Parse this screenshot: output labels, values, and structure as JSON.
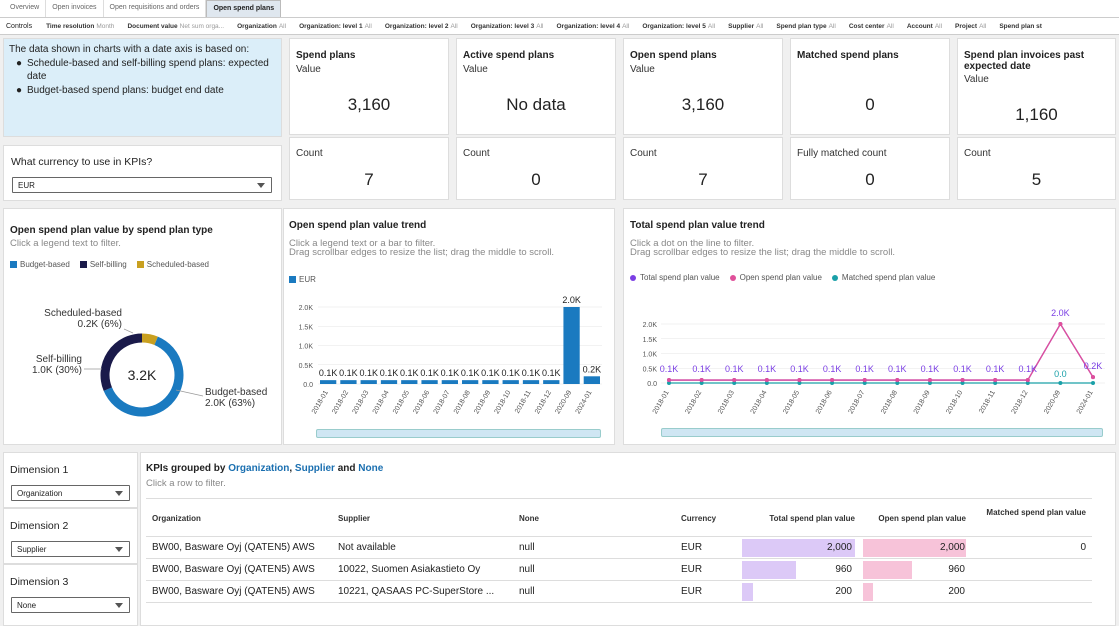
{
  "tabs": [
    "Overview",
    "Open invoices",
    "Open requisitions and orders",
    "Open spend plans"
  ],
  "controls": {
    "label": "Controls",
    "items": [
      {
        "name": "Time resolution",
        "value": "Month"
      },
      {
        "name": "Document value",
        "value": "Net sum orga..."
      },
      {
        "name": "Organization",
        "value": "All"
      },
      {
        "name": "Organization: level 1",
        "value": "All"
      },
      {
        "name": "Organization: level 2",
        "value": "All"
      },
      {
        "name": "Organization: level 3",
        "value": "All"
      },
      {
        "name": "Organization: level 4",
        "value": "All"
      },
      {
        "name": "Organization: level 5",
        "value": "All"
      },
      {
        "name": "Supplier",
        "value": "All"
      },
      {
        "name": "Spend plan type",
        "value": "All"
      },
      {
        "name": "Cost center",
        "value": "All"
      },
      {
        "name": "Account",
        "value": "All"
      },
      {
        "name": "Project",
        "value": "All"
      },
      {
        "name": "Spend plan st",
        "value": ""
      }
    ]
  },
  "info": {
    "text": "The data shown in charts with a date axis is based on:",
    "bullets": [
      "Schedule-based and self-billing spend plans: expected date",
      "Budget-based spend plans: budget end date"
    ]
  },
  "currency": {
    "label": "What currency to use in KPIs?",
    "value": "EUR"
  },
  "kpis": [
    {
      "title": "Spend plans",
      "sub": "Value",
      "value": "3,160",
      "count_label": "Count",
      "count": "7"
    },
    {
      "title": "Active spend plans",
      "sub": "Value",
      "value": "No data",
      "count_label": "Count",
      "count": "0"
    },
    {
      "title": "Open spend plans",
      "sub": "Value",
      "value": "3,160",
      "count_label": "Count",
      "count": "7"
    },
    {
      "title": "Matched spend plans",
      "sub": "",
      "value": "0",
      "count_label": "Fully matched count",
      "count": "0"
    },
    {
      "title": "Spend plan invoices past expected date",
      "sub": "Value",
      "value": "1,160",
      "count_label": "Count",
      "count": "5"
    }
  ],
  "donut": {
    "title": "Open spend plan value by spend plan type",
    "hint": "Click a legend text to filter.",
    "center": "3.2K",
    "legend": [
      "Budget-based",
      "Self-billing",
      "Scheduled-based"
    ],
    "labels": [
      {
        "l1": "Scheduled-based",
        "l2": "0.2K (6%)"
      },
      {
        "l1": "Self-billing",
        "l2": "1.0K (30%)"
      },
      {
        "l1": "Budget-based",
        "l2": "2.0K (63%)"
      }
    ]
  },
  "trend": {
    "title": "Open spend plan value trend",
    "hint1": "Click a legend text or a bar to filter.",
    "hint2": "Drag scrollbar edges to resize the list; drag the middle to scroll.",
    "legend": "EUR",
    "yticks": [
      "2.0K",
      "1.5K",
      "1.0K",
      "0.5K",
      "0.0"
    ]
  },
  "total": {
    "title": "Total spend plan value trend",
    "hint1": "Click a dot on the line to filter.",
    "hint2": "Drag scrollbar edges to resize the list; drag the middle to scroll.",
    "legend": [
      "Total spend plan value",
      "Open spend plan value",
      "Matched spend plan value"
    ],
    "yticks": [
      "2.0K",
      "1.5K",
      "1.0K",
      "0.5K",
      "0.0"
    ]
  },
  "dims": [
    {
      "label": "Dimension 1",
      "value": "Organization"
    },
    {
      "label": "Dimension 2",
      "value": "Supplier"
    },
    {
      "label": "Dimension 3",
      "value": "None"
    }
  ],
  "table": {
    "title_pre": "KPIs grouped by ",
    "t1": "Organization",
    "t_comma": ", ",
    "t2": "Supplier",
    "t_and": " and ",
    "t3": "None",
    "hint": "Click a row to filter.",
    "headers": [
      "Organization",
      "Supplier",
      "None",
      "Currency",
      "Total spend plan value",
      "Open spend plan value",
      "Matched spend plan value"
    ],
    "rows": [
      {
        "org": "BW00, Basware Oyj (QATEN5) AWS",
        "sup": "Not available",
        "none": "null",
        "cur": "EUR",
        "total": "2,000",
        "open": "2,000",
        "matched": "0",
        "total_n": 2000,
        "open_n": 2000
      },
      {
        "org": "BW00, Basware Oyj (QATEN5) AWS",
        "sup": "10022, Suomen Asiakastieto Oy",
        "none": "null",
        "cur": "EUR",
        "total": "960",
        "open": "960",
        "matched": "",
        "total_n": 960,
        "open_n": 960
      },
      {
        "org": "BW00, Basware Oyj (QATEN5) AWS",
        "sup": "10221, QASAAS PC-SuperStore ...",
        "none": "null",
        "cur": "EUR",
        "total": "200",
        "open": "200",
        "matched": "",
        "total_n": 200,
        "open_n": 200
      }
    ]
  },
  "chart_data": [
    {
      "type": "pie",
      "title": "Open spend plan value by spend plan type",
      "categories": [
        "Budget-based",
        "Self-billing",
        "Scheduled-based"
      ],
      "values": [
        2.0,
        1.0,
        0.2
      ],
      "percent": [
        63,
        30,
        6
      ],
      "unit": "K",
      "colors": [
        "#1a7ac0",
        "#1a1a4a",
        "#c9a020"
      ]
    },
    {
      "type": "bar",
      "title": "Open spend plan value trend",
      "categories": [
        "2018-01",
        "2018-02",
        "2018-03",
        "2018-04",
        "2018-05",
        "2018-06",
        "2018-07",
        "2018-08",
        "2018-09",
        "2018-10",
        "2018-11",
        "2018-12",
        "2020-09",
        "2024-01"
      ],
      "series": [
        {
          "name": "EUR",
          "values": [
            0.1,
            0.1,
            0.1,
            0.1,
            0.1,
            0.1,
            0.1,
            0.1,
            0.1,
            0.1,
            0.1,
            0.1,
            2.0,
            0.2
          ]
        }
      ],
      "labels": [
        "0.1K",
        "0.1K",
        "0.1K",
        "0.1K",
        "0.1K",
        "0.1K",
        "0.1K",
        "0.1K",
        "0.1K",
        "0.1K",
        "0.1K",
        "0.1K",
        "2.0K",
        "0.2K"
      ],
      "ylim": [
        0,
        2.0
      ],
      "color": "#1a7ac0"
    },
    {
      "type": "line",
      "title": "Total spend plan value trend",
      "categories": [
        "2018-01",
        "2018-02",
        "2018-03",
        "2018-04",
        "2018-05",
        "2018-06",
        "2018-07",
        "2018-08",
        "2018-09",
        "2018-10",
        "2018-11",
        "2018-12",
        "2020-09",
        "2024-01"
      ],
      "series": [
        {
          "name": "Total spend plan value",
          "values": [
            0.1,
            0.1,
            0.1,
            0.1,
            0.1,
            0.1,
            0.1,
            0.1,
            0.1,
            0.1,
            0.1,
            0.1,
            2.0,
            0.2
          ]
        },
        {
          "name": "Open spend plan value",
          "values": [
            0.1,
            0.1,
            0.1,
            0.1,
            0.1,
            0.1,
            0.1,
            0.1,
            0.1,
            0.1,
            0.1,
            0.1,
            2.0,
            0.2
          ]
        },
        {
          "name": "Matched spend plan value",
          "values": [
            0,
            0,
            0,
            0,
            0,
            0,
            0,
            0,
            0,
            0,
            0,
            0,
            0,
            0
          ]
        }
      ],
      "labels": [
        "0.1K",
        "0.1K",
        "0.1K",
        "0.1K",
        "0.1K",
        "0.1K",
        "0.1K",
        "0.1K",
        "0.1K",
        "0.1K",
        "0.1K",
        "0.1K",
        "2.0K",
        "0.2K"
      ],
      "matched_label": "0.0",
      "ylim": [
        0,
        2.0
      ],
      "colors": [
        "#7b3fe4",
        "#e0509a",
        "#1aa0a8"
      ]
    }
  ]
}
